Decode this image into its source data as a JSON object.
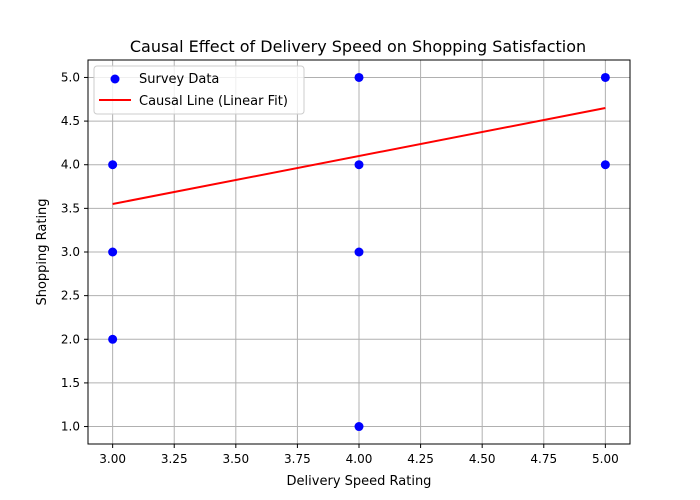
{
  "chart_data": {
    "type": "scatter",
    "title": "Causal Effect of Delivery Speed on Shopping Satisfaction",
    "xlabel": "Delivery Speed Rating",
    "ylabel": "Shopping Rating",
    "xlim": [
      2.9,
      5.1
    ],
    "ylim": [
      0.8,
      5.2
    ],
    "grid": true,
    "legend_position": "upper-left",
    "x_ticks": [
      3.0,
      3.25,
      3.5,
      3.75,
      4.0,
      4.25,
      4.5,
      4.75,
      5.0
    ],
    "x_tick_labels": [
      "3.00",
      "3.25",
      "3.50",
      "3.75",
      "4.00",
      "4.25",
      "4.50",
      "4.75",
      "5.00"
    ],
    "y_ticks": [
      1.0,
      1.5,
      2.0,
      2.5,
      3.0,
      3.5,
      4.0,
      4.5,
      5.0
    ],
    "y_tick_labels": [
      "1.0",
      "1.5",
      "2.0",
      "2.5",
      "3.0",
      "3.5",
      "4.0",
      "4.5",
      "5.0"
    ],
    "series": [
      {
        "name": "Survey Data",
        "kind": "scatter",
        "color": "#0000ff",
        "points": [
          {
            "x": 3,
            "y": 4
          },
          {
            "x": 3,
            "y": 3
          },
          {
            "x": 3,
            "y": 2
          },
          {
            "x": 4,
            "y": 5
          },
          {
            "x": 4,
            "y": 4
          },
          {
            "x": 4,
            "y": 3
          },
          {
            "x": 4,
            "y": 1
          },
          {
            "x": 5,
            "y": 5
          },
          {
            "x": 5,
            "y": 4
          }
        ]
      },
      {
        "name": "Causal Line (Linear Fit)",
        "kind": "line",
        "color": "#ff0000",
        "points": [
          {
            "x": 3,
            "y": 3.55
          },
          {
            "x": 5,
            "y": 4.65
          }
        ]
      }
    ]
  }
}
